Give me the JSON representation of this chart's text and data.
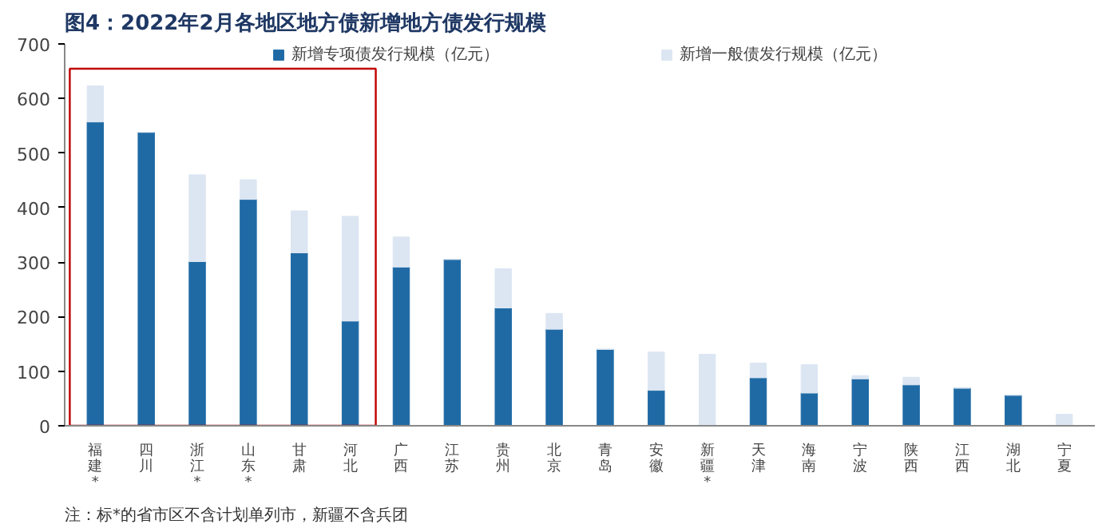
{
  "chart_data": {
    "type": "bar",
    "stacked": true,
    "title": "图4：2022年2月各地区地方债新增地方债发行规模",
    "categories": [
      "福建*",
      "四川",
      "浙江*",
      "山东*",
      "甘肃",
      "河北",
      "广西",
      "江苏",
      "贵州",
      "北京",
      "青岛",
      "安徽",
      "新疆*",
      "天津",
      "海南",
      "宁波",
      "陕西",
      "江西",
      "湖北",
      "宁夏"
    ],
    "series": [
      {
        "name": "新增专项债发行规模（亿元）",
        "color": "#1f6aa5",
        "values": [
          557,
          538,
          301,
          415,
          317,
          192,
          291,
          305,
          216,
          177,
          140,
          65,
          0,
          88,
          60,
          86,
          75,
          69,
          56,
          0
        ]
      },
      {
        "name": "新增一般债发行规模（亿元）",
        "color": "#dce6f2",
        "values": [
          66,
          0,
          159,
          36,
          77,
          192,
          55,
          0,
          72,
          29,
          0,
          70,
          131,
          27,
          52,
          6,
          14,
          0,
          0,
          21
        ]
      }
    ],
    "ylim": [
      0,
      700
    ],
    "yticks": [
      0,
      100,
      200,
      300,
      400,
      500,
      600,
      700
    ],
    "grid": false,
    "legend": "top",
    "annotations": [
      "注：标*的省市区不含计划单列市，新疆不含兵团"
    ]
  }
}
